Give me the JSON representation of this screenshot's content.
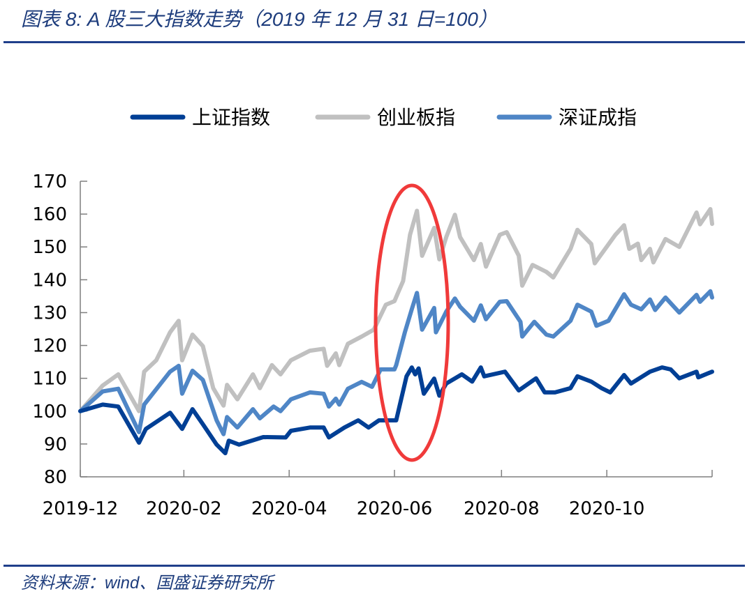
{
  "header": {
    "title": "图表 8:  A 股三大指数走势（2019 年 12 月 31 日=100）"
  },
  "footer": {
    "source": "资料来源：wind、国盛证券研究所"
  },
  "chart_data": {
    "type": "line",
    "title": "",
    "xlabel": "",
    "ylabel": "",
    "ylim": [
      80,
      170
    ],
    "yticks": [
      80,
      90,
      100,
      110,
      120,
      130,
      140,
      150,
      160,
      170
    ],
    "xlim": [
      "2019-12-31",
      "2020-12-31"
    ],
    "xticks": [
      {
        "date": "2019-12-31",
        "label": "2019-12"
      },
      {
        "date": "2020-02-29",
        "label": "2020-02"
      },
      {
        "date": "2020-04-30",
        "label": "2020-04"
      },
      {
        "date": "2020-06-30",
        "label": "2020-06"
      },
      {
        "date": "2020-08-31",
        "label": "2020-08"
      },
      {
        "date": "2020-10-31",
        "label": "2020-10"
      },
      {
        "date": "2020-12-31",
        "label": ""
      }
    ],
    "grid": false,
    "legend_position": "top",
    "annotation": {
      "type": "ellipse",
      "color": "#f03a3a",
      "from": "2020-06-22",
      "to": "2020-07-28"
    },
    "series": [
      {
        "name": "上证指数",
        "color": "#003f95",
        "points": [
          [
            "2019-12-31",
            100
          ],
          [
            "2020-01-13",
            102
          ],
          [
            "2020-01-22",
            101.4
          ],
          [
            "2020-02-03",
            90.4
          ],
          [
            "2020-02-07",
            94.6
          ],
          [
            "2020-02-21",
            99.5
          ],
          [
            "2020-02-28",
            94.6
          ],
          [
            "2020-03-05",
            100.6
          ],
          [
            "2020-03-11",
            96
          ],
          [
            "2020-03-19",
            89.8
          ],
          [
            "2020-03-24",
            87.2
          ],
          [
            "2020-03-26",
            91
          ],
          [
            "2020-04-01",
            89.8
          ],
          [
            "2020-04-15",
            92.1
          ],
          [
            "2020-04-28",
            92
          ],
          [
            "2020-05-01",
            94
          ],
          [
            "2020-05-12",
            95
          ],
          [
            "2020-05-20",
            95
          ],
          [
            "2020-05-23",
            92
          ],
          [
            "2020-06-01",
            95
          ],
          [
            "2020-06-09",
            97.2
          ],
          [
            "2020-06-15",
            95
          ],
          [
            "2020-06-21",
            97.2
          ],
          [
            "2020-07-01",
            97.2
          ],
          [
            "2020-07-07",
            110.6
          ],
          [
            "2020-07-10",
            113.3
          ],
          [
            "2020-07-12",
            111.2
          ],
          [
            "2020-07-14",
            113
          ],
          [
            "2020-07-17",
            105.3
          ],
          [
            "2020-07-23",
            109.9
          ],
          [
            "2020-07-26",
            104.7
          ],
          [
            "2020-07-30",
            108.4
          ],
          [
            "2020-08-08",
            111.2
          ],
          [
            "2020-08-14",
            109
          ],
          [
            "2020-08-19",
            113.3
          ],
          [
            "2020-08-21",
            110.6
          ],
          [
            "2020-09-02",
            112
          ],
          [
            "2020-09-10",
            106.3
          ],
          [
            "2020-09-20",
            110
          ],
          [
            "2020-09-25",
            105.7
          ],
          [
            "2020-10-01",
            105.7
          ],
          [
            "2020-10-10",
            107
          ],
          [
            "2020-10-14",
            110.6
          ],
          [
            "2020-10-22",
            109
          ],
          [
            "2020-10-28",
            107
          ],
          [
            "2020-11-02",
            105.7
          ],
          [
            "2020-11-10",
            111
          ],
          [
            "2020-11-14",
            108.4
          ],
          [
            "2020-11-25",
            112
          ],
          [
            "2020-12-02",
            113.3
          ],
          [
            "2020-12-07",
            112.7
          ],
          [
            "2020-12-12",
            110
          ],
          [
            "2020-12-22",
            112
          ],
          [
            "2020-12-23",
            110.3
          ],
          [
            "2020-12-31",
            112
          ]
        ]
      },
      {
        "name": "创业板指",
        "color": "#c0c0c0",
        "points": [
          [
            "2019-12-31",
            100
          ],
          [
            "2020-01-13",
            107.8
          ],
          [
            "2020-01-22",
            111.2
          ],
          [
            "2020-02-03",
            100
          ],
          [
            "2020-02-06",
            112
          ],
          [
            "2020-02-13",
            115.5
          ],
          [
            "2020-02-21",
            124
          ],
          [
            "2020-02-26",
            127.5
          ],
          [
            "2020-02-28",
            115.5
          ],
          [
            "2020-03-05",
            123.3
          ],
          [
            "2020-03-11",
            119.8
          ],
          [
            "2020-03-17",
            107
          ],
          [
            "2020-03-23",
            101.7
          ],
          [
            "2020-03-25",
            108
          ],
          [
            "2020-03-31",
            103.6
          ],
          [
            "2020-04-09",
            111.2
          ],
          [
            "2020-04-13",
            107
          ],
          [
            "2020-04-20",
            114
          ],
          [
            "2020-04-25",
            111.2
          ],
          [
            "2020-05-01",
            115.5
          ],
          [
            "2020-05-12",
            118.4
          ],
          [
            "2020-05-20",
            119
          ],
          [
            "2020-05-22",
            113.8
          ],
          [
            "2020-05-27",
            117.6
          ],
          [
            "2020-05-29",
            114
          ],
          [
            "2020-06-03",
            120.5
          ],
          [
            "2020-06-11",
            122.7
          ],
          [
            "2020-06-18",
            124.8
          ],
          [
            "2020-06-25",
            132.4
          ],
          [
            "2020-06-30",
            133.5
          ],
          [
            "2020-07-02",
            136
          ],
          [
            "2020-07-05",
            139.6
          ],
          [
            "2020-07-09",
            153.7
          ],
          [
            "2020-07-13",
            161
          ],
          [
            "2020-07-16",
            147.3
          ],
          [
            "2020-07-23",
            155.8
          ],
          [
            "2020-07-26",
            146.2
          ],
          [
            "2020-07-30",
            153
          ],
          [
            "2020-08-04",
            159.8
          ],
          [
            "2020-08-07",
            153
          ],
          [
            "2020-08-15",
            146
          ],
          [
            "2020-08-19",
            150.9
          ],
          [
            "2020-08-22",
            144
          ],
          [
            "2020-08-30",
            153.7
          ],
          [
            "2020-09-03",
            154.5
          ],
          [
            "2020-09-10",
            147.3
          ],
          [
            "2020-09-12",
            138.2
          ],
          [
            "2020-09-18",
            144.5
          ],
          [
            "2020-09-26",
            142.4
          ],
          [
            "2020-09-30",
            140.7
          ],
          [
            "2020-10-10",
            149.4
          ],
          [
            "2020-10-14",
            155.2
          ],
          [
            "2020-10-22",
            150.9
          ],
          [
            "2020-10-24",
            145
          ],
          [
            "2020-11-05",
            153.7
          ],
          [
            "2020-11-10",
            156.6
          ],
          [
            "2020-11-13",
            149.4
          ],
          [
            "2020-11-18",
            151
          ],
          [
            "2020-11-20",
            146
          ],
          [
            "2020-11-25",
            149.4
          ],
          [
            "2020-11-27",
            145.3
          ],
          [
            "2020-12-04",
            152.4
          ],
          [
            "2020-12-12",
            150
          ],
          [
            "2020-12-22",
            160.5
          ],
          [
            "2020-12-24",
            156.9
          ],
          [
            "2020-12-30",
            161.5
          ],
          [
            "2020-12-31",
            157
          ]
        ]
      },
      {
        "name": "深证成指",
        "color": "#4f86c6",
        "points": [
          [
            "2019-12-31",
            100
          ],
          [
            "2020-01-13",
            106
          ],
          [
            "2020-01-22",
            106.8
          ],
          [
            "2020-02-03",
            93.6
          ],
          [
            "2020-02-06",
            102
          ],
          [
            "2020-02-21",
            112
          ],
          [
            "2020-02-26",
            113.8
          ],
          [
            "2020-02-28",
            105.3
          ],
          [
            "2020-03-05",
            112.3
          ],
          [
            "2020-03-11",
            109.5
          ],
          [
            "2020-03-19",
            97.2
          ],
          [
            "2020-03-23",
            93
          ],
          [
            "2020-03-25",
            98.2
          ],
          [
            "2020-03-31",
            95
          ],
          [
            "2020-04-09",
            100.6
          ],
          [
            "2020-04-13",
            97.8
          ],
          [
            "2020-04-21",
            101.4
          ],
          [
            "2020-04-25",
            100
          ],
          [
            "2020-05-01",
            103.6
          ],
          [
            "2020-05-12",
            105.7
          ],
          [
            "2020-05-20",
            105.3
          ],
          [
            "2020-05-23",
            101.4
          ],
          [
            "2020-05-27",
            103.8
          ],
          [
            "2020-05-29",
            102
          ],
          [
            "2020-06-03",
            106.8
          ],
          [
            "2020-06-11",
            108.9
          ],
          [
            "2020-06-17",
            107.4
          ],
          [
            "2020-06-22",
            112.7
          ],
          [
            "2020-06-30",
            112.7
          ],
          [
            "2020-07-01",
            114
          ],
          [
            "2020-07-06",
            124
          ],
          [
            "2020-07-10",
            131
          ],
          [
            "2020-07-13",
            136
          ],
          [
            "2020-07-16",
            124.8
          ],
          [
            "2020-07-23",
            131.4
          ],
          [
            "2020-07-24",
            124
          ],
          [
            "2020-07-30",
            130.3
          ],
          [
            "2020-08-04",
            134.3
          ],
          [
            "2020-08-07",
            131.8
          ],
          [
            "2020-08-15",
            127.5
          ],
          [
            "2020-08-19",
            132.2
          ],
          [
            "2020-08-22",
            128
          ],
          [
            "2020-08-30",
            133.3
          ],
          [
            "2020-09-03",
            133.5
          ],
          [
            "2020-09-11",
            127.2
          ],
          [
            "2020-09-12",
            122.7
          ],
          [
            "2020-09-19",
            127.2
          ],
          [
            "2020-09-26",
            123.3
          ],
          [
            "2020-09-30",
            122.7
          ],
          [
            "2020-10-10",
            127.5
          ],
          [
            "2020-10-14",
            132.4
          ],
          [
            "2020-10-22",
            130.3
          ],
          [
            "2020-10-25",
            126
          ],
          [
            "2020-11-01",
            127.5
          ],
          [
            "2020-11-10",
            135.6
          ],
          [
            "2020-11-14",
            132.4
          ],
          [
            "2020-11-20",
            131
          ],
          [
            "2020-11-25",
            134
          ],
          [
            "2020-11-28",
            130.8
          ],
          [
            "2020-12-04",
            134.6
          ],
          [
            "2020-12-12",
            130
          ],
          [
            "2020-12-22",
            135.4
          ],
          [
            "2020-12-24",
            133.3
          ],
          [
            "2020-12-30",
            136.5
          ],
          [
            "2020-12-31",
            134.6
          ]
        ]
      }
    ]
  }
}
